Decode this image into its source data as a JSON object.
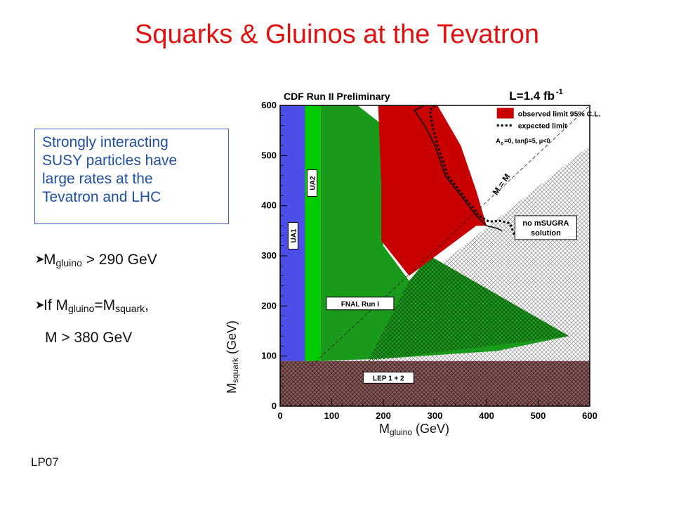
{
  "slide": {
    "title": "Squarks & Gluinos at the Tevatron",
    "footer": "LP07",
    "info_box": [
      "Strongly interacting",
      "SUSY particles have",
      "large rates at the",
      "Tevatron and LHC"
    ],
    "bullets": {
      "b1": {
        "main": "M",
        "sub": "gluino",
        "rest": " > 290 GeV"
      },
      "b2": {
        "prefix": "If M",
        "sub1": "gluino",
        "mid": "=M",
        "sub2": "squark",
        "suffix": ","
      },
      "b3": "M > 380 GeV"
    },
    "arrow_glyph": "➤"
  },
  "chart_data": {
    "type": "exclusion",
    "title": "CDF Run II Preliminary",
    "luminosity": "L=1.4 fb",
    "luminosity_sup": "-1",
    "xlabel": {
      "main": "M",
      "sub": "gluino",
      "rest": " (GeV)"
    },
    "ylabel": {
      "main": "M",
      "sub": "squark",
      "rest": " (GeV)"
    },
    "xlim": [
      0,
      600
    ],
    "ylim": [
      0,
      600
    ],
    "xticks": [
      0,
      100,
      200,
      300,
      400,
      500,
      600
    ],
    "yticks": [
      0,
      100,
      200,
      300,
      400,
      500,
      600
    ],
    "legend": {
      "position": "top-right",
      "observed": "observed limit 95% C.L.",
      "expected": "expected limit",
      "params": "A",
      "params_sub": "0",
      "params_rest": "=0, tanβ=5, μ<0"
    },
    "diagonal_label": "M  = M",
    "diagonal_sub_q": "q",
    "diagonal_sub_g": "g",
    "region_labels": {
      "ua1": "UA1",
      "ua2": "UA2",
      "fnal": "FNAL Run I",
      "lep": "LEP 1 + 2",
      "no_msugra": [
        "no mSUGRA",
        "solution"
      ]
    },
    "colors": {
      "ua1": "#4d4de8",
      "ua2": "#00cc00",
      "fnal": "#1a9a1a",
      "observed": "#c80000",
      "lep": "#8a5a5a",
      "frame": "#000000",
      "hatch": "#777777"
    },
    "regions": {
      "ua1": [
        [
          0,
          90
        ],
        [
          0,
          600
        ],
        [
          50,
          600
        ],
        [
          50,
          90
        ]
      ],
      "ua2": [
        [
          48,
          90
        ],
        [
          48,
          600
        ],
        [
          78,
          600
        ],
        [
          78,
          90
        ]
      ],
      "fnal": [
        [
          78,
          90
        ],
        [
          78,
          600
        ],
        [
          150,
          600
        ],
        [
          200,
          560
        ],
        [
          200,
          320
        ],
        [
          250,
          250
        ],
        [
          290,
          300
        ],
        [
          560,
          140
        ],
        [
          420,
          110
        ],
        [
          200,
          95
        ]
      ],
      "observed": [
        [
          170,
          600
        ],
        [
          190,
          600
        ],
        [
          196,
          440
        ],
        [
          196,
          330
        ],
        [
          250,
          260
        ],
        [
          380,
          360
        ],
        [
          400,
          360
        ],
        [
          380,
          430
        ],
        [
          350,
          520
        ],
        [
          305,
          600
        ],
        [
          280,
          600
        ],
        [
          220,
          600
        ]
      ],
      "lep": [
        [
          0,
          0
        ],
        [
          0,
          90
        ],
        [
          600,
          90
        ],
        [
          600,
          0
        ]
      ],
      "no_msugra_hatch": [
        [
          75,
          90
        ],
        [
          600,
          90
        ],
        [
          600,
          520
        ]
      ],
      "fnal_hatch": [
        [
          170,
          90
        ],
        [
          560,
          140
        ],
        [
          290,
          300
        ],
        [
          250,
          250
        ]
      ]
    },
    "observed_limit": [
      [
        280,
        600
      ],
      [
        260,
        590
      ],
      [
        280,
        560
      ],
      [
        300,
        520
      ],
      [
        320,
        460
      ],
      [
        350,
        420
      ],
      [
        380,
        380
      ],
      [
        400,
        360
      ],
      [
        420,
        355
      ],
      [
        430,
        350
      ]
    ],
    "expected_limit": [
      [
        300,
        600
      ],
      [
        290,
        590
      ],
      [
        295,
        560
      ],
      [
        305,
        520
      ],
      [
        325,
        460
      ],
      [
        355,
        420
      ],
      [
        385,
        380
      ],
      [
        405,
        368
      ],
      [
        425,
        370
      ],
      [
        445,
        365
      ],
      [
        455,
        340
      ]
    ]
  }
}
